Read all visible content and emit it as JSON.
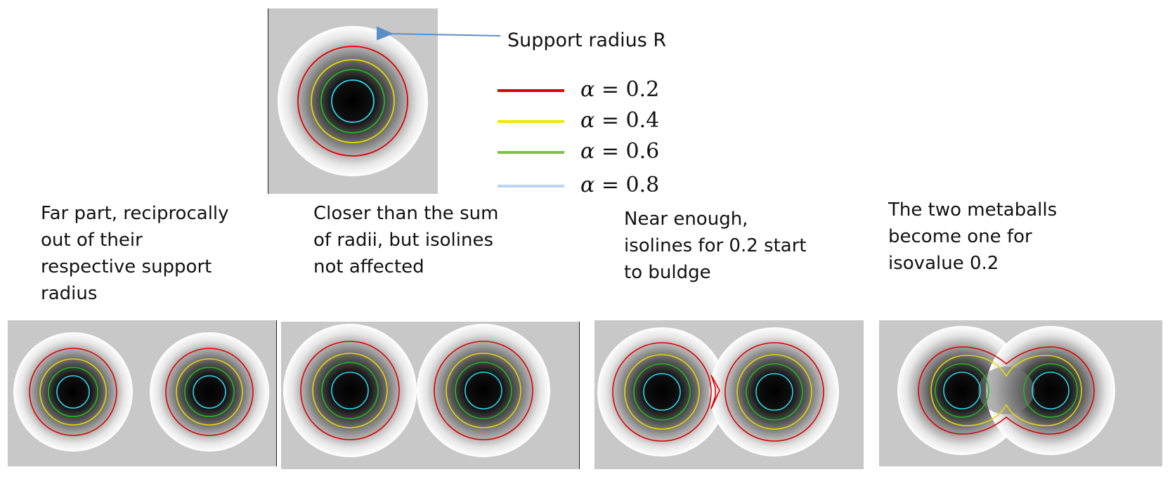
{
  "annotation": {
    "support_label": "Support radius R"
  },
  "legend": [
    {
      "symbol": "α",
      "value": "= 0.2",
      "color": "#e00000"
    },
    {
      "symbol": "α",
      "value": "= 0.4",
      "color": "#f0e800"
    },
    {
      "symbol": "α",
      "value": "= 0.6",
      "color": "#7cc04a"
    },
    {
      "symbol": "α",
      "value": "= 0.8",
      "color": "#b8d8f0"
    }
  ],
  "isoline_colors": {
    "a02": "#e00000",
    "a04": "#e6d800",
    "a06": "#22b822",
    "a08": "#28d8ee"
  },
  "captions": [
    "Far part, reciprocally\nout of their\nrespective support\nradius",
    "Closer than the sum\nof radii, but isolines\nnot affected",
    "Near enough,\nisolines for 0.2 start\nto buldge",
    "The two metaballs\nbecome one for\nisovalue 0.2"
  ]
}
